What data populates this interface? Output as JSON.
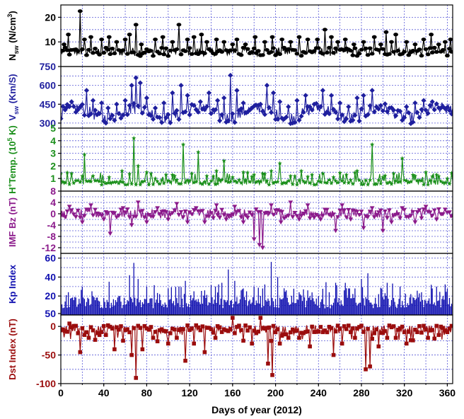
{
  "chart_data": {
    "type": "line",
    "shared_x": {
      "xlabel": "Days of year (2012)",
      "xlim": [
        0,
        365
      ],
      "xticks": [
        0,
        40,
        80,
        120,
        160,
        200,
        240,
        280,
        320,
        360
      ],
      "xtick_labels": [
        "0",
        "40",
        "80",
        "120",
        "160",
        "200",
        "240",
        "280",
        "320",
        "360"
      ],
      "grid": true
    },
    "panels": [
      {
        "id": "nsw",
        "ylabel": "N_sw (N/cm^3)",
        "ylabel_main": "N",
        "ylabel_sub": "sw",
        "ylabel_rest": " (N/cm",
        "ylabel_sup": "3",
        "ylabel_end": ")",
        "ylim": [
          0,
          25
        ],
        "yticks": [
          10,
          20
        ],
        "ytick_labels": [
          "10",
          "20"
        ],
        "color": "#000000",
        "marker": "circle",
        "plot": "line",
        "baseline": 6,
        "spikes": [
          [
            3,
            9
          ],
          [
            7,
            13
          ],
          [
            18,
            22.5
          ],
          [
            22,
            11
          ],
          [
            28,
            12
          ],
          [
            38,
            11
          ],
          [
            45,
            12
          ],
          [
            52,
            10
          ],
          [
            60,
            11
          ],
          [
            64,
            13
          ],
          [
            70,
            17
          ],
          [
            75,
            9
          ],
          [
            88,
            11
          ],
          [
            95,
            12
          ],
          [
            104,
            10
          ],
          [
            110,
            17
          ],
          [
            118,
            11
          ],
          [
            124,
            12
          ],
          [
            131,
            13
          ],
          [
            136,
            10
          ],
          [
            145,
            11
          ],
          [
            152,
            10
          ],
          [
            160,
            9
          ],
          [
            164,
            11
          ],
          [
            172,
            9
          ],
          [
            181,
            12
          ],
          [
            190,
            10
          ],
          [
            197,
            12
          ],
          [
            206,
            11
          ],
          [
            214,
            10
          ],
          [
            222,
            12
          ],
          [
            230,
            11
          ],
          [
            239,
            11
          ],
          [
            246,
            15
          ],
          [
            252,
            12
          ],
          [
            258,
            10
          ],
          [
            265,
            11
          ],
          [
            273,
            9
          ],
          [
            282,
            10
          ],
          [
            292,
            12
          ],
          [
            298,
            9
          ],
          [
            303,
            14
          ],
          [
            308,
            10
          ],
          [
            312,
            13
          ],
          [
            322,
            10
          ],
          [
            330,
            9
          ],
          [
            338,
            11
          ],
          [
            345,
            13
          ],
          [
            352,
            9
          ],
          [
            358,
            10
          ],
          [
            363,
            11
          ]
        ],
        "label_x": 200
      },
      {
        "id": "vsw",
        "ylabel": "V_sw (Km/S)",
        "ylabel_main": "V",
        "ylabel_sub": "sw",
        "ylabel_rest": " (Km/S)",
        "ylim": [
          260,
          750
        ],
        "yticks": [
          300,
          450,
          600,
          750
        ],
        "ytick_labels": [
          "300",
          "450",
          "600",
          "750"
        ],
        "color": "#1f1f9e",
        "marker": "diamond",
        "plot": "line",
        "baseline": 380,
        "spikes": [
          [
            5,
            420
          ],
          [
            10,
            470
          ],
          [
            18,
            430
          ],
          [
            24,
            560
          ],
          [
            30,
            480
          ],
          [
            38,
            460
          ],
          [
            44,
            420
          ],
          [
            52,
            450
          ],
          [
            60,
            480
          ],
          [
            66,
            600
          ],
          [
            70,
            660
          ],
          [
            74,
            620
          ],
          [
            80,
            500
          ],
          [
            88,
            420
          ],
          [
            96,
            460
          ],
          [
            104,
            540
          ],
          [
            112,
            600
          ],
          [
            118,
            520
          ],
          [
            124,
            440
          ],
          [
            130,
            470
          ],
          [
            138,
            540
          ],
          [
            146,
            480
          ],
          [
            152,
            500
          ],
          [
            158,
            680
          ],
          [
            164,
            560
          ],
          [
            170,
            460
          ],
          [
            178,
            420
          ],
          [
            186,
            450
          ],
          [
            192,
            600
          ],
          [
            198,
            540
          ],
          [
            204,
            470
          ],
          [
            212,
            430
          ],
          [
            220,
            480
          ],
          [
            228,
            520
          ],
          [
            236,
            450
          ],
          [
            244,
            560
          ],
          [
            252,
            520
          ],
          [
            260,
            460
          ],
          [
            268,
            430
          ],
          [
            276,
            500
          ],
          [
            282,
            520
          ],
          [
            290,
            560
          ],
          [
            298,
            440
          ],
          [
            306,
            420
          ],
          [
            314,
            400
          ],
          [
            322,
            430
          ],
          [
            330,
            460
          ],
          [
            338,
            480
          ],
          [
            346,
            470
          ],
          [
            354,
            420
          ],
          [
            362,
            400
          ]
        ],
        "label_x": 200
      },
      {
        "id": "temp",
        "ylabel": "H+ Temp. (10^5 K)",
        "ylabel_main": "H",
        "ylabel_supA": "+",
        "ylabel_rest": "Temp. (10",
        "ylabel_sup": "5",
        "ylabel_end": " K)",
        "ylim": [
          0,
          5
        ],
        "yticks": [
          1,
          2,
          3,
          4,
          5
        ],
        "ytick_labels": [
          "1",
          "2",
          "3",
          "4",
          "5"
        ],
        "color": "#1a8f1a",
        "marker": "star",
        "plot": "line",
        "baseline": 0.7,
        "spikes": [
          [
            10,
            1.4
          ],
          [
            22,
            2.9
          ],
          [
            30,
            1.2
          ],
          [
            45,
            1.1
          ],
          [
            57,
            1.6
          ],
          [
            68,
            4.2
          ],
          [
            72,
            2.0
          ],
          [
            80,
            1.5
          ],
          [
            88,
            1.0
          ],
          [
            98,
            1.3
          ],
          [
            106,
            1.2
          ],
          [
            114,
            3.7
          ],
          [
            122,
            1.4
          ],
          [
            128,
            3.1
          ],
          [
            136,
            1.2
          ],
          [
            145,
            1.6
          ],
          [
            152,
            2.4
          ],
          [
            160,
            1.1
          ],
          [
            170,
            1.5
          ],
          [
            180,
            1.3
          ],
          [
            188,
            1.4
          ],
          [
            196,
            1.6
          ],
          [
            204,
            2.2
          ],
          [
            214,
            1.2
          ],
          [
            224,
            1.6
          ],
          [
            234,
            1.3
          ],
          [
            244,
            1.4
          ],
          [
            254,
            1.1
          ],
          [
            266,
            1.3
          ],
          [
            276,
            1.6
          ],
          [
            290,
            3.7
          ],
          [
            300,
            1.1
          ],
          [
            310,
            1.4
          ],
          [
            318,
            2.6
          ],
          [
            330,
            1.2
          ],
          [
            340,
            1.5
          ],
          [
            350,
            1.3
          ],
          [
            360,
            1.0
          ]
        ],
        "label_x": 200
      },
      {
        "id": "imfbz",
        "ylabel": "IMF Bz (nT)",
        "ylim": [
          -14,
          8
        ],
        "yticks": [
          -12,
          -8,
          -4,
          0,
          4,
          8
        ],
        "ytick_labels": [
          "-12",
          "-8",
          "-4",
          "0",
          "4",
          "8"
        ],
        "color": "#8b1a8b",
        "marker": "triangle-down",
        "plot": "line",
        "baseline": 0,
        "spikes": [
          [
            8,
            2.5
          ],
          [
            20,
            -3
          ],
          [
            28,
            3
          ],
          [
            40,
            -2
          ],
          [
            46,
            -7
          ],
          [
            58,
            2
          ],
          [
            66,
            -4
          ],
          [
            72,
            4
          ],
          [
            80,
            -3
          ],
          [
            90,
            2
          ],
          [
            100,
            -2
          ],
          [
            108,
            3.5
          ],
          [
            118,
            -3
          ],
          [
            126,
            2
          ],
          [
            134,
            -3
          ],
          [
            145,
            3
          ],
          [
            154,
            -2
          ],
          [
            162,
            2.5
          ],
          [
            170,
            -3
          ],
          [
            180,
            -9
          ],
          [
            185,
            -11
          ],
          [
            188,
            -12
          ],
          [
            196,
            3
          ],
          [
            205,
            -3
          ],
          [
            214,
            4
          ],
          [
            222,
            -2
          ],
          [
            230,
            3
          ],
          [
            242,
            -2
          ],
          [
            256,
            -6
          ],
          [
            262,
            3
          ],
          [
            270,
            -2
          ],
          [
            282,
            -5
          ],
          [
            290,
            2
          ],
          [
            300,
            -6
          ],
          [
            308,
            -3
          ],
          [
            318,
            2
          ],
          [
            330,
            -3
          ],
          [
            340,
            2.5
          ],
          [
            350,
            -2
          ],
          [
            358,
            1.5
          ]
        ],
        "label_x": 200
      },
      {
        "id": "kp",
        "ylabel": "Kp Index",
        "ylim": [
          0,
          65
        ],
        "yticks": [
          50,
          40,
          20,
          60
        ],
        "ytick_labels": [
          "50",
          "40",
          "20",
          "60"
        ],
        "tick_positions": [
          [
            50,
            0
          ],
          [
            40,
            40
          ],
          [
            20,
            20
          ],
          [
            60,
            60
          ]
        ],
        "color": "#1010b0",
        "marker": "none",
        "plot": "bar",
        "baseline": 7,
        "spikes": [
          [
            10,
            18
          ],
          [
            20,
            30
          ],
          [
            30,
            20
          ],
          [
            40,
            18
          ],
          [
            55,
            20
          ],
          [
            64,
            42
          ],
          [
            68,
            55
          ],
          [
            72,
            38
          ],
          [
            80,
            30
          ],
          [
            92,
            22
          ],
          [
            100,
            28
          ],
          [
            110,
            30
          ],
          [
            116,
            36
          ],
          [
            124,
            25
          ],
          [
            134,
            26
          ],
          [
            144,
            30
          ],
          [
            150,
            34
          ],
          [
            156,
            48
          ],
          [
            162,
            36
          ],
          [
            170,
            28
          ],
          [
            180,
            30
          ],
          [
            188,
            28
          ],
          [
            196,
            56
          ],
          [
            202,
            40
          ],
          [
            210,
            26
          ],
          [
            222,
            24
          ],
          [
            230,
            26
          ],
          [
            240,
            20
          ],
          [
            250,
            24
          ],
          [
            256,
            34
          ],
          [
            264,
            26
          ],
          [
            274,
            28
          ],
          [
            280,
            38
          ],
          [
            286,
            44
          ],
          [
            296,
            22
          ],
          [
            304,
            34
          ],
          [
            316,
            30
          ],
          [
            326,
            22
          ],
          [
            336,
            24
          ],
          [
            346,
            28
          ],
          [
            356,
            20
          ],
          [
            362,
            18
          ]
        ],
        "label_x": 200
      },
      {
        "id": "dst",
        "ylabel": "Dst Index (nT)",
        "ylim": [
          -100,
          20
        ],
        "yticks": [
          -100,
          -50,
          0
        ],
        "ytick_labels": [
          "-100",
          "-50",
          "0"
        ],
        "color": "#9b0d0d",
        "marker": "square",
        "plot": "line",
        "baseline": -5,
        "spikes": [
          [
            8,
            5
          ],
          [
            18,
            -45
          ],
          [
            26,
            -20
          ],
          [
            36,
            -15
          ],
          [
            42,
            -15
          ],
          [
            50,
            -40
          ],
          [
            58,
            -25
          ],
          [
            66,
            -50
          ],
          [
            70,
            -90
          ],
          [
            76,
            -40
          ],
          [
            86,
            -20
          ],
          [
            94,
            -5
          ],
          [
            100,
            -30
          ],
          [
            108,
            -20
          ],
          [
            116,
            -60
          ],
          [
            124,
            -30
          ],
          [
            134,
            -45
          ],
          [
            144,
            -20
          ],
          [
            152,
            -5
          ],
          [
            160,
            15
          ],
          [
            170,
            -25
          ],
          [
            178,
            -30
          ],
          [
            186,
            15
          ],
          [
            193,
            -65
          ],
          [
            197,
            -85
          ],
          [
            204,
            -30
          ],
          [
            212,
            -20
          ],
          [
            222,
            -20
          ],
          [
            232,
            -35
          ],
          [
            244,
            -10
          ],
          [
            254,
            -50
          ],
          [
            262,
            -30
          ],
          [
            274,
            -20
          ],
          [
            284,
            -75
          ],
          [
            288,
            -70
          ],
          [
            296,
            -35
          ],
          [
            304,
            -20
          ],
          [
            312,
            -20
          ],
          [
            322,
            -30
          ],
          [
            332,
            -10
          ],
          [
            342,
            -20
          ],
          [
            352,
            -15
          ],
          [
            360,
            -10
          ]
        ],
        "label_x": 200
      }
    ]
  }
}
